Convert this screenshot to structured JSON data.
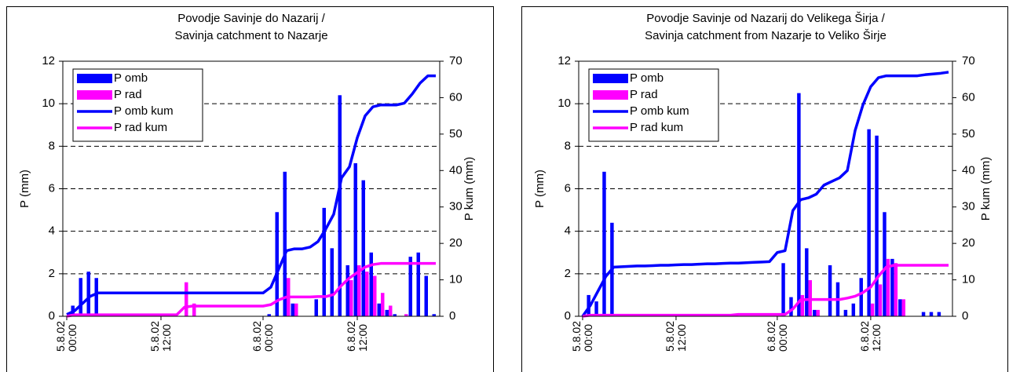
{
  "chart_data": [
    {
      "type": "combo",
      "title": [
        "Povodje Savinje do Nazarij /",
        "Savinja catchment to Nazarje"
      ],
      "ylabel": "P (mm)",
      "y2label": "P kum (mm)",
      "categories": [
        "5.8.02\n00:00",
        null,
        null,
        null,
        null,
        null,
        null,
        null,
        null,
        null,
        null,
        null,
        "5.8.02\n12:00",
        null,
        null,
        null,
        null,
        null,
        null,
        null,
        null,
        null,
        null,
        null,
        null,
        "6.8.02\n00:00",
        null,
        null,
        null,
        null,
        null,
        null,
        null,
        null,
        null,
        null,
        null,
        "6.8.02\n12:00",
        null,
        null,
        null,
        null,
        null,
        null,
        null,
        null,
        null,
        null
      ],
      "ylim": [
        0,
        12
      ],
      "yticks": [
        0,
        2,
        4,
        6,
        8,
        10,
        12
      ],
      "y2lim": [
        0,
        70
      ],
      "y2ticks": [
        0,
        10,
        20,
        30,
        40,
        50,
        60,
        70
      ],
      "grid": true,
      "legend": "upper left",
      "series": [
        {
          "name": "P omb",
          "type": "bar",
          "color": "#0000ff",
          "values": [
            0,
            0.5,
            1.8,
            2.1,
            1.8,
            0,
            0,
            0,
            0,
            0,
            0,
            0,
            0,
            0,
            0,
            0,
            0,
            0,
            0,
            0,
            0,
            0,
            0,
            0,
            0,
            0,
            0.1,
            4.9,
            6.8,
            0.6,
            0,
            0,
            0.8,
            5.1,
            3.2,
            10.4,
            2.4,
            7.2,
            6.4,
            3.0,
            0.6,
            0.3,
            0.1,
            0,
            2.8,
            3.0,
            1.9,
            0.1
          ]
        },
        {
          "name": "P rad",
          "type": "bar",
          "color": "#ff00ff",
          "values": [
            0,
            0,
            0,
            0,
            0,
            0,
            0,
            0,
            0,
            0,
            0,
            0,
            0,
            0,
            0,
            1.6,
            0.6,
            0,
            0,
            0,
            0,
            0,
            0,
            0,
            0,
            0,
            0,
            0,
            1.8,
            0.6,
            0,
            0,
            0,
            0,
            0,
            0,
            1.7,
            2.4,
            2.1,
            1.9,
            1.1,
            0.5,
            0,
            0.1,
            0,
            0,
            0,
            0
          ]
        },
        {
          "name": "P omb kum",
          "type": "line",
          "axis": "y2",
          "color": "#0000ff",
          "values": [
            0.5,
            1.5,
            3.5,
            5.5,
            6.4,
            6.4,
            6.4,
            6.4,
            6.4,
            6.4,
            6.4,
            6.4,
            6.4,
            6.4,
            6.4,
            6.4,
            6.4,
            6.4,
            6.4,
            6.4,
            6.4,
            6.4,
            6.4,
            6.4,
            6.4,
            6.4,
            8,
            13,
            18,
            18.5,
            18.5,
            19,
            20.5,
            24,
            28,
            38,
            41,
            49,
            55,
            57.5,
            58,
            58,
            58,
            58.5,
            61,
            64,
            66,
            66
          ]
        },
        {
          "name": "P rad kum",
          "type": "line",
          "axis": "y2",
          "color": "#ff00ff",
          "values": [
            0,
            0.4,
            0.4,
            0.4,
            0.4,
            0.4,
            0.4,
            0.4,
            0.4,
            0.4,
            0.4,
            0.4,
            0.4,
            0.4,
            0.4,
            2.5,
            2.8,
            2.8,
            2.8,
            2.8,
            2.8,
            2.8,
            2.8,
            2.8,
            2.8,
            2.8,
            3.2,
            4.5,
            5.3,
            5.3,
            5.3,
            5.3,
            5.4,
            5.4,
            6,
            8.5,
            10.5,
            12,
            13.5,
            14.2,
            14.5,
            14.5,
            14.5,
            14.5,
            14.5,
            14.5,
            14.5,
            14.5
          ]
        }
      ]
    },
    {
      "type": "combo",
      "title": [
        "Povodje Savinje od Nazarij do Velikega Širja /",
        "Savinja catchment from Nazarje to Veliko Širje"
      ],
      "ylabel": "P (mm)",
      "y2label": "P kum (mm)",
      "categories": [
        "5.8.02\n00:00",
        null,
        null,
        null,
        null,
        null,
        null,
        null,
        null,
        null,
        null,
        null,
        "5.8.02\n12:00",
        null,
        null,
        null,
        null,
        null,
        null,
        null,
        null,
        null,
        null,
        null,
        null,
        "6.8.02\n00:00",
        null,
        null,
        null,
        null,
        null,
        null,
        null,
        null,
        null,
        null,
        null,
        "6.8.02\n12:00",
        null,
        null,
        null,
        null,
        null,
        null,
        null,
        null,
        null,
        null
      ],
      "ylim": [
        0,
        12
      ],
      "yticks": [
        0,
        2,
        4,
        6,
        8,
        10,
        12
      ],
      "y2lim": [
        0,
        70
      ],
      "y2ticks": [
        0,
        10,
        20,
        30,
        40,
        50,
        60,
        70
      ],
      "grid": true,
      "legend": "upper left",
      "series": [
        {
          "name": "P omb",
          "type": "bar",
          "color": "#0000ff",
          "values": [
            0,
            1.0,
            0.7,
            6.8,
            4.4,
            0,
            0,
            0,
            0,
            0,
            0,
            0,
            0,
            0,
            0,
            0,
            0,
            0,
            0,
            0,
            0,
            0,
            0,
            0,
            0,
            0,
            2.5,
            0.9,
            10.5,
            3.2,
            0.3,
            0,
            2.4,
            1.6,
            0.3,
            0.6,
            1.8,
            8.8,
            8.5,
            4.9,
            2.7,
            0.8,
            0,
            0,
            0.2,
            0.2,
            0.2,
            0
          ]
        },
        {
          "name": "P rad",
          "type": "bar",
          "color": "#ff00ff",
          "values": [
            0,
            0,
            0,
            0,
            0,
            0,
            0,
            0,
            0,
            0,
            0,
            0,
            0,
            0,
            0,
            0,
            0,
            0,
            0,
            0,
            0,
            0,
            0,
            0,
            0,
            0,
            0,
            0,
            1.0,
            1.7,
            0.3,
            0,
            0,
            0,
            0,
            0,
            0,
            0.6,
            1.5,
            2.7,
            2.5,
            0.8,
            0,
            0,
            0,
            0,
            0,
            0
          ]
        },
        {
          "name": "P omb kum",
          "type": "line",
          "axis": "y2",
          "color": "#0000ff",
          "values": [
            0,
            3,
            7,
            11,
            13.5,
            13.6,
            13.7,
            13.8,
            13.8,
            13.9,
            14.0,
            14.0,
            14.1,
            14.2,
            14.2,
            14.3,
            14.4,
            14.4,
            14.5,
            14.6,
            14.6,
            14.7,
            14.8,
            14.9,
            15.0,
            17.5,
            18,
            29,
            32,
            32.5,
            33.5,
            36,
            37,
            38,
            40,
            51,
            58,
            63,
            65.5,
            66,
            66,
            66,
            66,
            66,
            66.3,
            66.5,
            66.7,
            67
          ]
        },
        {
          "name": "P rad kum",
          "type": "line",
          "axis": "y2",
          "color": "#ff00ff",
          "values": [
            0,
            0.3,
            0.3,
            0.3,
            0.3,
            0.3,
            0.3,
            0.3,
            0.3,
            0.3,
            0.3,
            0.3,
            0.3,
            0.3,
            0.3,
            0.3,
            0.3,
            0.3,
            0.3,
            0.3,
            0.5,
            0.5,
            0.5,
            0.5,
            0.5,
            0.5,
            0.5,
            2,
            4.5,
            4.6,
            4.6,
            4.6,
            4.6,
            4.6,
            5,
            5.5,
            6.5,
            8,
            11,
            13.5,
            14,
            14,
            14,
            14,
            14,
            14,
            14,
            14
          ]
        }
      ]
    }
  ]
}
